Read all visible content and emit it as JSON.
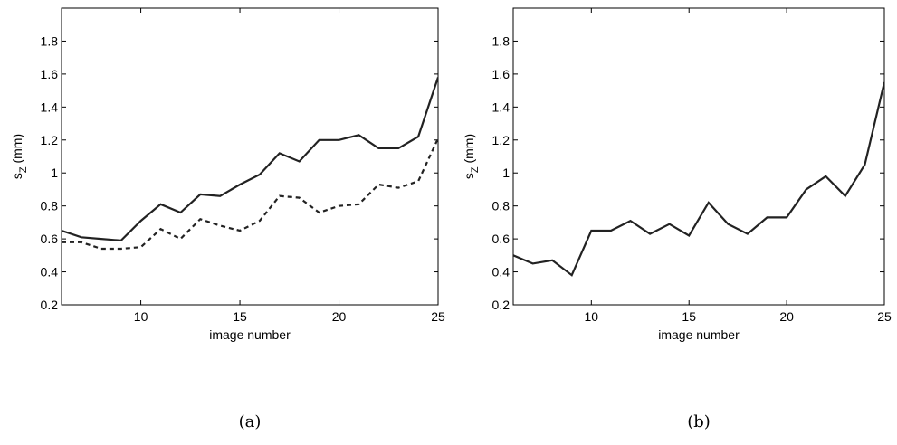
{
  "chart_data": [
    {
      "type": "line",
      "caption": "(a)",
      "xlabel": "image number",
      "ylabel": "s_Z (mm)",
      "ylabel_main": "s",
      "ylabel_sub": "Z",
      "ylabel_unit": " (mm)",
      "xlim": [
        6,
        25
      ],
      "ylim": [
        0.2,
        2.0
      ],
      "xticks": [
        10,
        15,
        20,
        25
      ],
      "xtick_labels": [
        "10",
        "15",
        "20",
        "25"
      ],
      "yticks": [
        0.2,
        0.4,
        0.6,
        0.8,
        1,
        1.2,
        1.4,
        1.6,
        1.8
      ],
      "ytick_labels": [
        "0.2",
        "0.4",
        "0.6",
        "0.8",
        "1",
        "1.2",
        "1.4",
        "1.6",
        "1.8"
      ],
      "x": [
        6,
        7,
        8,
        9,
        10,
        11,
        12,
        13,
        14,
        15,
        16,
        17,
        18,
        19,
        20,
        21,
        22,
        23,
        24,
        25
      ],
      "series": [
        {
          "style": "solid",
          "color": "#222222",
          "values": [
            0.65,
            0.61,
            0.6,
            0.59,
            0.71,
            0.81,
            0.76,
            0.87,
            0.86,
            0.93,
            0.99,
            1.12,
            1.07,
            1.2,
            1.2,
            1.23,
            1.15,
            1.15,
            1.22,
            1.58
          ]
        },
        {
          "style": "dashed",
          "color": "#222222",
          "values": [
            0.58,
            0.58,
            0.54,
            0.54,
            0.55,
            0.66,
            0.6,
            0.72,
            0.68,
            0.65,
            0.71,
            0.86,
            0.85,
            0.76,
            0.8,
            0.81,
            0.93,
            0.91,
            0.95,
            1.21
          ]
        }
      ]
    },
    {
      "type": "line",
      "caption": "(b)",
      "xlabel": "image number",
      "ylabel": "s_Z (mm)",
      "ylabel_main": "s",
      "ylabel_sub": "Z",
      "ylabel_unit": " (mm)",
      "xlim": [
        6,
        25
      ],
      "ylim": [
        0.2,
        2.0
      ],
      "xticks": [
        10,
        15,
        20,
        25
      ],
      "xtick_labels": [
        "10",
        "15",
        "20",
        "25"
      ],
      "yticks": [
        0.2,
        0.4,
        0.6,
        0.8,
        1,
        1.2,
        1.4,
        1.6,
        1.8
      ],
      "ytick_labels": [
        "0.2",
        "0.4",
        "0.6",
        "0.8",
        "1",
        "1.2",
        "1.4",
        "1.6",
        "1.8"
      ],
      "x": [
        6,
        7,
        8,
        9,
        10,
        11,
        12,
        13,
        14,
        15,
        16,
        17,
        18,
        19,
        20,
        21,
        22,
        23,
        24,
        25
      ],
      "series": [
        {
          "style": "solid",
          "color": "#222222",
          "values": [
            0.5,
            0.45,
            0.47,
            0.38,
            0.65,
            0.65,
            0.71,
            0.63,
            0.69,
            0.62,
            0.82,
            0.69,
            0.63,
            0.73,
            0.73,
            0.9,
            0.98,
            0.86,
            1.05,
            1.55
          ]
        }
      ]
    }
  ]
}
